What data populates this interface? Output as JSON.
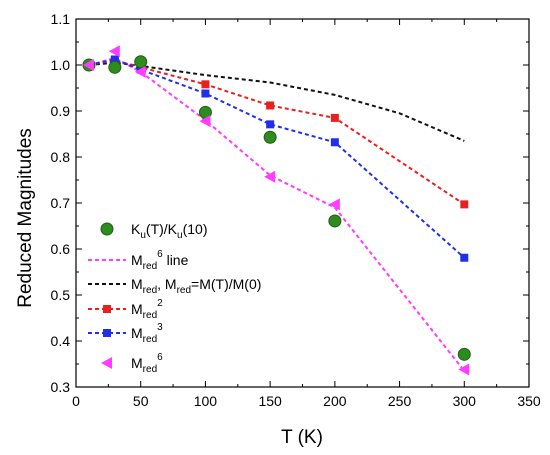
{
  "chart_data": {
    "type": "scatter",
    "xlabel": "T (K)",
    "ylabel": "Reduced Magnitudes",
    "xlim": [
      0,
      350
    ],
    "ylim": [
      0.3,
      1.1
    ],
    "x_ticks": [
      0,
      50,
      100,
      150,
      200,
      250,
      300,
      350
    ],
    "y_ticks": [
      0.3,
      0.4,
      0.5,
      0.6,
      0.7,
      0.8,
      0.9,
      1.0,
      1.1
    ],
    "x_tick_labels": [
      "0",
      "50",
      "100",
      "150",
      "200",
      "250",
      "300",
      "350"
    ],
    "y_tick_labels": [
      "0.3",
      "0.4",
      "0.5",
      "0.6",
      "0.7",
      "0.8",
      "0.9",
      "1.0",
      "1.1"
    ],
    "grid": false,
    "legend_position": "bottom-left",
    "series": [
      {
        "name": "Ku(T)/Ku(10)",
        "style": "marker",
        "marker": "circle",
        "color": "#2e8b1e",
        "x": [
          10,
          30,
          50,
          100,
          150,
          200,
          300
        ],
        "y": [
          1.0,
          0.995,
          1.007,
          0.897,
          0.843,
          0.661,
          0.371
        ]
      },
      {
        "name": "Mred6 line",
        "style": "dashed",
        "color": "#ff3cff",
        "x": [
          10,
          30,
          50,
          100,
          150,
          200,
          300
        ],
        "y": [
          1.0,
          1.015,
          0.985,
          0.88,
          0.76,
          0.69,
          0.335
        ]
      },
      {
        "name": "Mred, Mred=M(T)/M(0)",
        "style": "dashed",
        "color": "#111111",
        "x": [
          10,
          30,
          50,
          100,
          150,
          200,
          250,
          300
        ],
        "y": [
          1.0,
          1.005,
          0.998,
          0.978,
          0.962,
          0.935,
          0.895,
          0.835
        ]
      },
      {
        "name": "Mred2",
        "style": "dashed+marker",
        "marker": "square",
        "color": "#e8201f",
        "x": [
          10,
          30,
          50,
          100,
          150,
          200,
          300
        ],
        "y": [
          1.0,
          1.01,
          0.995,
          0.958,
          0.912,
          0.885,
          0.697
        ]
      },
      {
        "name": "Mred3",
        "style": "dashed+marker",
        "marker": "square",
        "color": "#1f30e8",
        "x": [
          10,
          30,
          50,
          100,
          150,
          200,
          300
        ],
        "y": [
          1.0,
          1.012,
          0.99,
          0.938,
          0.871,
          0.832,
          0.581
        ]
      },
      {
        "name": "Mred6",
        "style": "marker",
        "marker": "triangle-left",
        "color": "#ff3cff",
        "x": [
          10,
          30,
          50,
          100,
          150,
          200,
          300
        ],
        "y": [
          1.0,
          1.03,
          0.985,
          0.878,
          0.757,
          0.697,
          0.338
        ]
      }
    ],
    "legend": [
      {
        "base": "K",
        "sub": "u",
        "mid": "(T)/K",
        "sub2": "u",
        "tail": "(10)"
      },
      {
        "base": "M",
        "sub": "red",
        "sup": "6",
        "tail": " line"
      },
      {
        "base": "M",
        "sub": "red",
        "mid": ", M",
        "sub2": "red",
        "tail": "=M(T)/M(0)"
      },
      {
        "base": "M",
        "sub": "red",
        "sup": "2",
        "tail": ""
      },
      {
        "base": "M",
        "sub": "red",
        "sup": "3",
        "tail": ""
      },
      {
        "base": "M",
        "sub": "red",
        "sup": "6",
        "tail": ""
      }
    ]
  }
}
